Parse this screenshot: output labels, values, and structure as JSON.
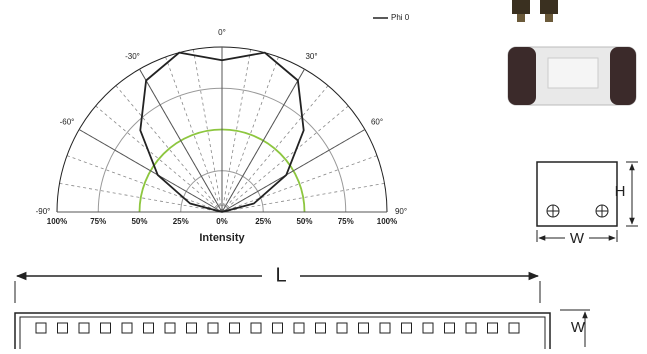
{
  "chart_data": {
    "type": "polar",
    "x_label": "Intensity",
    "x": [
      -90,
      -75,
      -60,
      -45,
      -30,
      -15,
      0,
      15,
      30,
      45,
      60,
      75,
      90
    ],
    "series": [
      {
        "name": "Phi 0",
        "color": "#222222",
        "values": [
          0,
          20,
          45,
          70,
          92,
          100,
          92,
          100,
          92,
          70,
          45,
          20,
          0
        ]
      }
    ],
    "angle_ticks": [
      {
        "value": -90,
        "label": "-90°"
      },
      {
        "value": -60,
        "label": "-60°"
      },
      {
        "value": -30,
        "label": "-30°"
      },
      {
        "value": 0,
        "label": "0°"
      },
      {
        "value": 30,
        "label": "30°"
      },
      {
        "value": 60,
        "label": "60°"
      },
      {
        "value": 90,
        "label": "90°"
      }
    ],
    "ylim": [
      0,
      100
    ],
    "yticks": [
      {
        "value": 0,
        "label": "0%"
      },
      {
        "value": 25,
        "label": "25%"
      },
      {
        "value": 50,
        "label": "50%"
      },
      {
        "value": 75,
        "label": "75%"
      },
      {
        "value": 100,
        "label": "100%"
      }
    ],
    "legend": "upper right"
  },
  "dimensions": {
    "length_label": "L",
    "strip_width_label": "W",
    "box_height_label": "H",
    "box_width_label": "W"
  }
}
